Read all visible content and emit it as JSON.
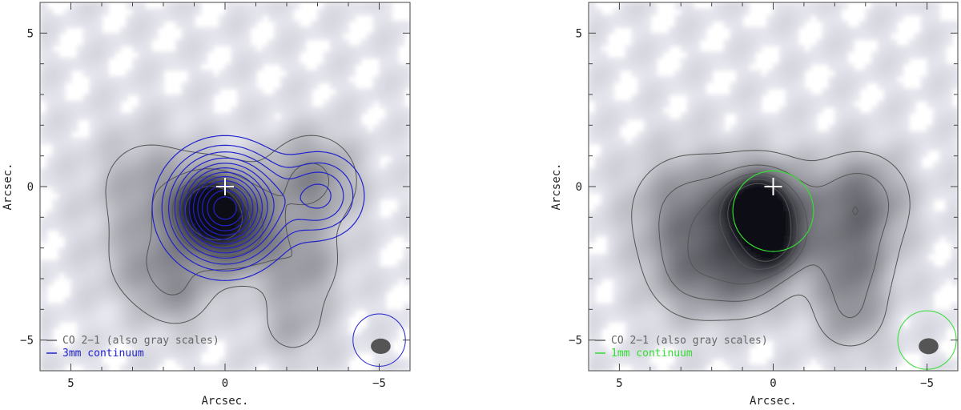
{
  "chart_data": [
    {
      "type": "contour",
      "xlabel": "Arcsec.",
      "ylabel": "Arcsec.",
      "xlim": [
        6,
        -6
      ],
      "ylim": [
        -6,
        6
      ],
      "x_ticks": [
        5,
        0,
        -5
      ],
      "x_tick_labels": [
        "5",
        "0",
        "−5"
      ],
      "y_ticks": [
        5,
        0,
        -5
      ],
      "y_tick_labels": [
        "5",
        "0",
        "−5"
      ],
      "grid": false,
      "legend": {
        "placement": "bottom-left",
        "entries": [
          {
            "label": "CO 2−1 (also gray scales)",
            "color": "#666666"
          },
          {
            "label": "3mm continuum",
            "color": "#2222cc"
          }
        ]
      },
      "center_marker": {
        "x": 0,
        "y": 0,
        "color": "#ffffff"
      },
      "gray_peaks": [
        {
          "x": 0.5,
          "y": -0.7,
          "amp": 1.0,
          "s": 0.55
        },
        {
          "x": 0.3,
          "y": -1.0,
          "amp": 0.6,
          "s": 1.0
        },
        {
          "x": -0.5,
          "y": -1.5,
          "amp": 0.35,
          "s": 0.9
        },
        {
          "x": -2.8,
          "y": 0.2,
          "amp": 0.35,
          "s": 1.0
        },
        {
          "x": -2.5,
          "y": -2.5,
          "amp": 0.25,
          "s": 0.9
        },
        {
          "x": 2.5,
          "y": 0.0,
          "amp": 0.22,
          "s": 1.2
        },
        {
          "x": 2.5,
          "y": -2.5,
          "amp": 0.22,
          "s": 1.0
        },
        {
          "x": 1.5,
          "y": -3.5,
          "amp": 0.2,
          "s": 0.8
        },
        {
          "x": -2.2,
          "y": -4.5,
          "amp": 0.18,
          "s": 0.8
        }
      ],
      "continuum_peaks": [
        {
          "x": 0.0,
          "y": -0.7,
          "amp": 1.0,
          "s": 1.05
        },
        {
          "x": -3.1,
          "y": -0.3,
          "amp": 0.32,
          "s": 0.85
        }
      ],
      "continuum_levels": [
        0.08,
        0.15,
        0.22,
        0.3,
        0.38,
        0.46,
        0.54,
        0.62,
        0.7,
        0.78,
        0.86,
        0.94
      ],
      "beam_circle": {
        "x": -5,
        "y": -5,
        "r": 0.85,
        "color": "#2222cc"
      },
      "beam_ellipse": {
        "x": -5.05,
        "y": -5.2,
        "rx": 0.32,
        "ry": 0.25
      }
    },
    {
      "type": "contour",
      "xlabel": "Arcsec.",
      "ylabel": "Arcsec.",
      "xlim": [
        6,
        -6
      ],
      "ylim": [
        -6,
        6
      ],
      "x_ticks": [
        5,
        0,
        -5
      ],
      "x_tick_labels": [
        "5",
        "0",
        "−5"
      ],
      "y_ticks": [
        5,
        0,
        -5
      ],
      "y_tick_labels": [
        "5",
        "0",
        "−5"
      ],
      "grid": false,
      "legend": {
        "placement": "bottom-left",
        "entries": [
          {
            "label": "CO 2−1 (also gray scales)",
            "color": "#666666"
          },
          {
            "label": "1mm continuum",
            "color": "#33dd33"
          }
        ]
      },
      "center_marker": {
        "x": 0,
        "y": 0,
        "color": "#ffffff"
      },
      "gray_peaks": [
        {
          "x": 0.5,
          "y": -0.7,
          "amp": 1.0,
          "s": 0.6
        },
        {
          "x": 0.3,
          "y": -1.0,
          "amp": 0.7,
          "s": 1.1
        },
        {
          "x": 0.0,
          "y": -1.9,
          "amp": 0.55,
          "s": 0.6
        },
        {
          "x": -2.8,
          "y": -0.5,
          "amp": 0.45,
          "s": 1.0
        },
        {
          "x": -2.5,
          "y": -2.5,
          "amp": 0.35,
          "s": 0.9
        },
        {
          "x": 2.8,
          "y": -0.8,
          "amp": 0.35,
          "s": 1.2
        },
        {
          "x": 2.5,
          "y": -2.8,
          "amp": 0.35,
          "s": 1.0
        },
        {
          "x": 0.8,
          "y": -3.0,
          "amp": 0.3,
          "s": 0.8
        },
        {
          "x": -2.5,
          "y": -4.2,
          "amp": 0.25,
          "s": 0.8
        }
      ],
      "continuum_peaks": [
        {
          "x": 0.0,
          "y": -0.8,
          "amp": 1.0,
          "s": 1.2
        }
      ],
      "continuum_levels": [
        0.55
      ],
      "beam_circle": {
        "x": -5,
        "y": -5,
        "r": 0.95,
        "color": "#33dd33"
      },
      "beam_ellipse": {
        "x": -5.05,
        "y": -5.2,
        "rx": 0.32,
        "ry": 0.26
      }
    }
  ]
}
